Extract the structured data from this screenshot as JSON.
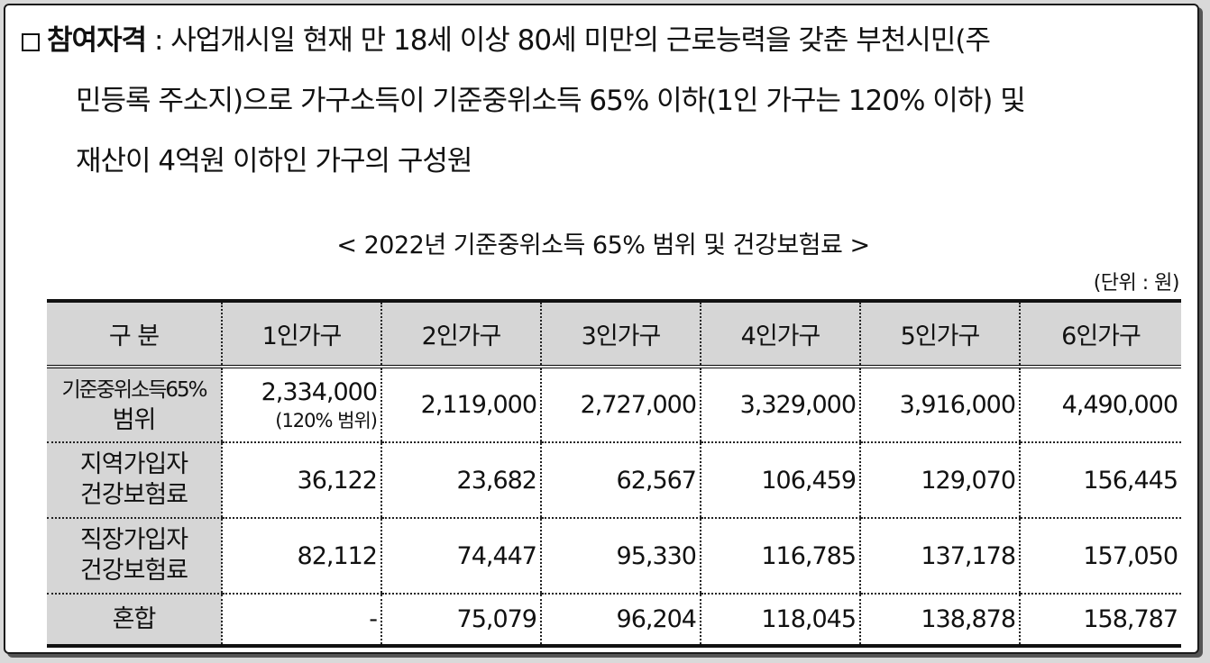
{
  "eligibility": {
    "label": "참여자격",
    "separator": " : ",
    "line1": "사업개시일 현재 만 18세 이상 80세 미만의 근로능력을 갖춘 부천시민(주",
    "line2": "민등록 주소지)으로 가구소득이 기준중위소득 65% 이하(1인 가구는 120% 이하) 및",
    "line3": "재산이 4억원 이하인 가구의 구성원"
  },
  "table_caption": "< 2022년 기준중위소득 65% 범위 및 건강보험료 >",
  "unit_note": "(단위 : 원)",
  "table": {
    "headers": [
      "구 분",
      "1인가구",
      "2인가구",
      "3인가구",
      "4인가구",
      "5인가구",
      "6인가구"
    ],
    "rows": [
      {
        "label_line1": "기준중위소득65%",
        "label_line2": "범위",
        "first_value": "2,334,000",
        "first_note": "(120% 범위)",
        "values": [
          "2,119,000",
          "2,727,000",
          "3,329,000",
          "3,916,000",
          "4,490,000"
        ]
      },
      {
        "label_line1": "지역가입자",
        "label_line2": "건강보험료",
        "values": [
          "36,122",
          "23,682",
          "62,567",
          "106,459",
          "129,070",
          "156,445"
        ]
      },
      {
        "label_line1": "직장가입자",
        "label_line2": "건강보험료",
        "values": [
          "82,112",
          "74,447",
          "95,330",
          "116,785",
          "137,178",
          "157,050"
        ]
      },
      {
        "label": "혼합",
        "values": [
          "-",
          "75,079",
          "96,204",
          "118,045",
          "138,878",
          "158,787"
        ]
      }
    ]
  }
}
